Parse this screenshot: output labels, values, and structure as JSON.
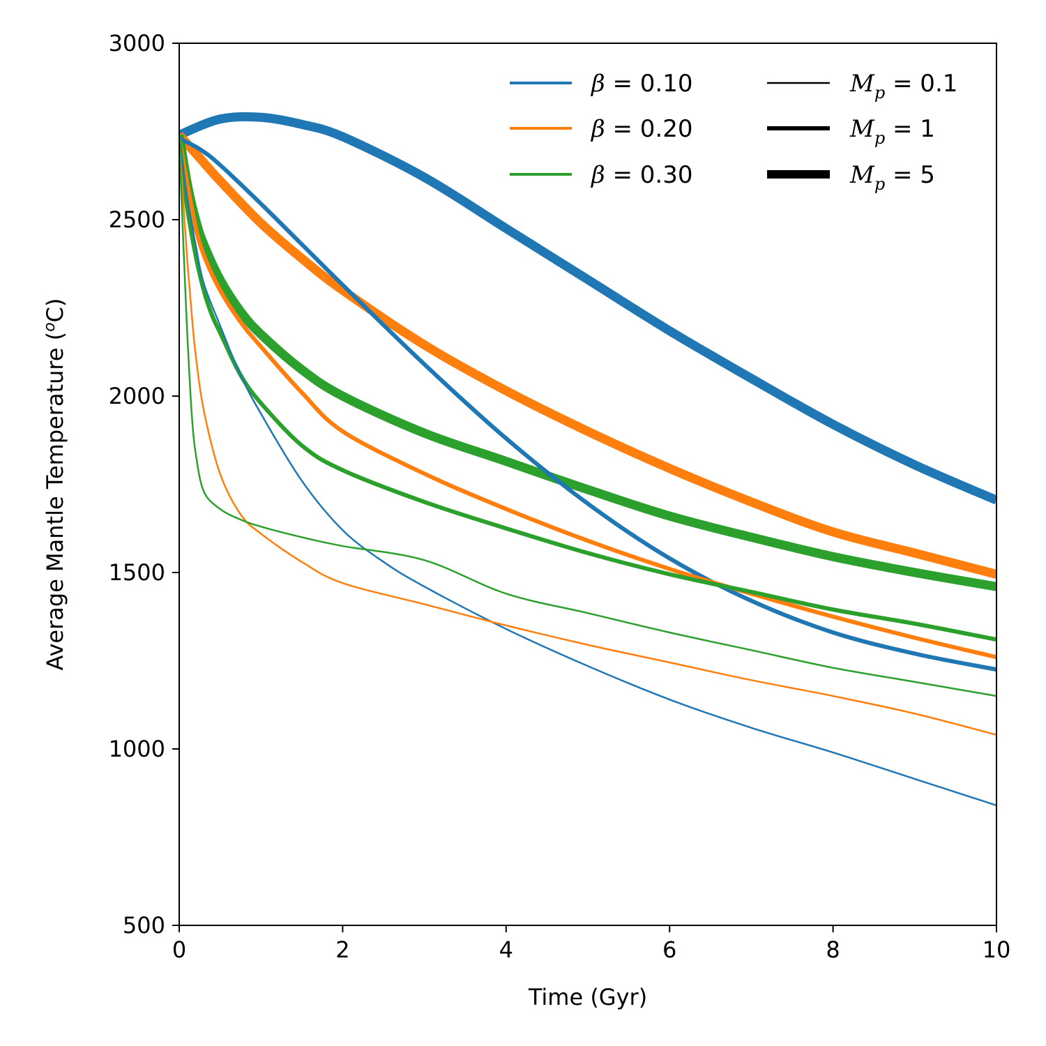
{
  "chart_data": {
    "type": "line",
    "title": "",
    "xlabel": "Time (Gyr)",
    "ylabel_prefix": "Average Mantle Temperature (",
    "ylabel_sup": "o",
    "ylabel_suffix": "C)",
    "xlim": [
      0,
      10
    ],
    "ylim": [
      500,
      3000
    ],
    "xticks": [
      0,
      2,
      4,
      6,
      8,
      10
    ],
    "yticks": [
      500,
      1000,
      1500,
      2000,
      2500,
      3000
    ],
    "grid": false,
    "legend_position": "top-right",
    "colors": {
      "blue": "#1f77b4",
      "orange": "#ff7f0e",
      "green": "#2ca02c",
      "black": "#000000"
    },
    "legend_beta": [
      {
        "symbol": "β",
        "text": " = 0.10",
        "color": "#1f77b4"
      },
      {
        "symbol": "β",
        "text": " = 0.20",
        "color": "#ff7f0e"
      },
      {
        "symbol": "β",
        "text": " = 0.30",
        "color": "#2ca02c"
      }
    ],
    "legend_mass": [
      {
        "symbol": "M",
        "sub": "p",
        "text": " = 0.1",
        "weight": "thin"
      },
      {
        "symbol": "M",
        "sub": "p",
        "text": " = 1",
        "weight": "medium"
      },
      {
        "symbol": "M",
        "sub": "p",
        "text": " = 5",
        "weight": "thick"
      }
    ],
    "series": [
      {
        "name": "beta=0.10, Mp=5",
        "color": "#1f77b4",
        "weight": "thick",
        "x": [
          0,
          0.5,
          1,
          1.5,
          2,
          3,
          4,
          5,
          6,
          7,
          8,
          9,
          10
        ],
        "y": [
          2740,
          2785,
          2790,
          2770,
          2735,
          2620,
          2475,
          2330,
          2185,
          2050,
          1920,
          1805,
          1705
        ]
      },
      {
        "name": "beta=0.20, Mp=5",
        "color": "#ff7f0e",
        "weight": "thick",
        "x": [
          0,
          0.25,
          0.5,
          1,
          1.5,
          2,
          3,
          4,
          5,
          6,
          7,
          8,
          9,
          10
        ],
        "y": [
          2740,
          2675,
          2610,
          2490,
          2390,
          2300,
          2145,
          2015,
          1900,
          1795,
          1700,
          1615,
          1555,
          1495
        ]
      },
      {
        "name": "beta=0.30, Mp=5",
        "color": "#2ca02c",
        "weight": "thick",
        "x": [
          0,
          0.1,
          0.2,
          0.3,
          0.5,
          0.75,
          1,
          1.5,
          2,
          3,
          4,
          5,
          6,
          7,
          8,
          9,
          10
        ],
        "y": [
          2740,
          2600,
          2500,
          2430,
          2330,
          2240,
          2175,
          2075,
          2000,
          1895,
          1815,
          1735,
          1660,
          1600,
          1545,
          1500,
          1460
        ]
      },
      {
        "name": "beta=0.10, Mp=1",
        "color": "#1f77b4",
        "weight": "medium",
        "x": [
          0,
          0.25,
          0.5,
          1,
          1.5,
          2,
          3,
          4,
          5,
          6,
          7,
          8,
          9,
          10
        ],
        "y": [
          2730,
          2700,
          2655,
          2545,
          2430,
          2315,
          2090,
          1880,
          1695,
          1540,
          1420,
          1330,
          1270,
          1225
        ]
      },
      {
        "name": "beta=0.20, Mp=1",
        "color": "#ff7f0e",
        "weight": "medium",
        "x": [
          0,
          0.1,
          0.2,
          0.3,
          0.5,
          0.75,
          1,
          1.5,
          2,
          3,
          4,
          5,
          6,
          7,
          8,
          9,
          10
        ],
        "y": [
          2730,
          2600,
          2480,
          2400,
          2300,
          2210,
          2140,
          2010,
          1900,
          1780,
          1680,
          1590,
          1510,
          1440,
          1375,
          1315,
          1260
        ]
      },
      {
        "name": "beta=0.30, Mp=1",
        "color": "#2ca02c",
        "weight": "medium",
        "x": [
          0,
          0.05,
          0.1,
          0.2,
          0.3,
          0.4,
          0.5,
          0.75,
          1,
          1.5,
          2,
          3,
          4,
          5,
          6,
          7,
          8,
          9,
          10
        ],
        "y": [
          2730,
          2620,
          2530,
          2400,
          2300,
          2230,
          2180,
          2060,
          1980,
          1860,
          1790,
          1700,
          1625,
          1555,
          1495,
          1445,
          1395,
          1355,
          1310
        ]
      },
      {
        "name": "beta=0.10, Mp=0.1",
        "color": "#1f77b4",
        "weight": "thin",
        "x": [
          0,
          0.1,
          0.2,
          0.3,
          0.5,
          0.75,
          1,
          1.5,
          2,
          2.5,
          3,
          4,
          5,
          6,
          7,
          8,
          9,
          10
        ],
        "y": [
          2720,
          2560,
          2430,
          2320,
          2200,
          2060,
          1950,
          1760,
          1620,
          1530,
          1460,
          1340,
          1235,
          1140,
          1060,
          990,
          915,
          840
        ]
      },
      {
        "name": "beta=0.20, Mp=0.1",
        "color": "#ff7f0e",
        "weight": "thin",
        "x": [
          0,
          0.05,
          0.1,
          0.15,
          0.2,
          0.3,
          0.5,
          0.75,
          1,
          1.5,
          2,
          3,
          4,
          5,
          6,
          7,
          8,
          9,
          10
        ],
        "y": [
          2720,
          2550,
          2380,
          2240,
          2120,
          1960,
          1780,
          1665,
          1610,
          1530,
          1470,
          1410,
          1350,
          1295,
          1245,
          1195,
          1150,
          1100,
          1040
        ]
      },
      {
        "name": "beta=0.30, Mp=0.1",
        "color": "#2ca02c",
        "weight": "thin",
        "x": [
          0,
          0.03,
          0.06,
          0.1,
          0.15,
          0.2,
          0.3,
          0.5,
          0.75,
          1,
          1.5,
          2,
          3,
          4,
          5,
          6,
          7,
          8,
          9,
          10
        ],
        "y": [
          2720,
          2550,
          2380,
          2170,
          1960,
          1840,
          1730,
          1680,
          1650,
          1630,
          1600,
          1575,
          1535,
          1440,
          1385,
          1330,
          1280,
          1230,
          1190,
          1150
        ]
      }
    ]
  }
}
